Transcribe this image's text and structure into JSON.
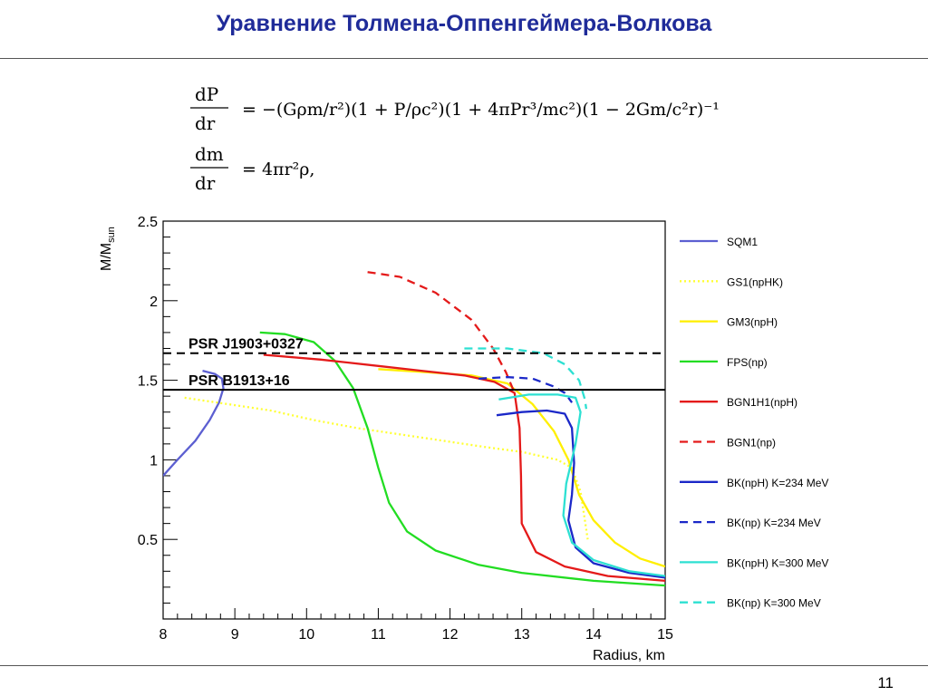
{
  "slide": {
    "title": "Уравнение Толмена-Оппенгеймера-Волкова",
    "page_number": "11"
  },
  "equations": [
    {
      "lhs_num": "dP",
      "lhs_den": "dr",
      "rhs": "= −(Gρm/r²)(1 + P/ρc²)(1 + 4πPr³/mc²)(1 − 2Gm/c²r)⁻¹"
    },
    {
      "lhs_num": "dm",
      "lhs_den": "dr",
      "rhs": "= 4πr²ρ,"
    }
  ],
  "colors": {
    "title": "#1f2b99",
    "SQM1": "#5c5fd1",
    "GS1": "#ffff33",
    "GM3": "#ffef00",
    "FPS": "#22dd22",
    "BGN1H1": "#e41a1a",
    "BGN1": "#e41a1a",
    "BK234": "#1b28c8",
    "BK300": "#2de0d2"
  },
  "chart_data": {
    "type": "line",
    "title": "",
    "xlabel": "Radius, km",
    "ylabel": "M/M_sun",
    "ylabel_main": "M/M",
    "ylabel_sub": "sun",
    "xlim": [
      8,
      15
    ],
    "ylim": [
      0,
      2.5
    ],
    "xticks": [
      "8",
      "9",
      "10",
      "11",
      "12",
      "13",
      "14",
      "15"
    ],
    "yticks": [
      "0.5",
      "1",
      "1.5",
      "2",
      "2.5"
    ],
    "grid": false,
    "legend_position": "right",
    "reference_lines": [
      {
        "label": "PSR J1903+0327",
        "y": 1.67,
        "style": "dashed",
        "color": "#000000"
      },
      {
        "label": "PSR B1913+16",
        "y": 1.44,
        "style": "solid",
        "color": "#000000"
      }
    ],
    "series": [
      {
        "name": "SQM1",
        "color": "#5c5fd1",
        "dash": "solid",
        "points": [
          [
            8.0,
            0.9
          ],
          [
            8.2,
            1.0
          ],
          [
            8.45,
            1.12
          ],
          [
            8.65,
            1.25
          ],
          [
            8.78,
            1.36
          ],
          [
            8.84,
            1.45
          ],
          [
            8.82,
            1.51
          ],
          [
            8.72,
            1.54
          ],
          [
            8.55,
            1.56
          ]
        ]
      },
      {
        "name": "GS1(npHK)",
        "color": "#ffff33",
        "dash": "dotted",
        "points": [
          [
            8.3,
            1.39
          ],
          [
            8.9,
            1.35
          ],
          [
            9.5,
            1.31
          ],
          [
            10.1,
            1.25
          ],
          [
            10.7,
            1.2
          ],
          [
            11.3,
            1.16
          ],
          [
            11.9,
            1.12
          ],
          [
            12.5,
            1.08
          ],
          [
            13.0,
            1.05
          ],
          [
            13.5,
            1.0
          ],
          [
            13.7,
            0.95
          ],
          [
            13.82,
            0.8
          ],
          [
            13.88,
            0.62
          ],
          [
            13.92,
            0.5
          ]
        ]
      },
      {
        "name": "GM3(npH)",
        "color": "#ffef00",
        "dash": "solid",
        "points": [
          [
            11.0,
            1.57
          ],
          [
            11.7,
            1.55
          ],
          [
            12.3,
            1.53
          ],
          [
            12.8,
            1.48
          ],
          [
            13.15,
            1.35
          ],
          [
            13.45,
            1.18
          ],
          [
            13.65,
            1.0
          ],
          [
            13.8,
            0.78
          ],
          [
            14.0,
            0.62
          ],
          [
            14.3,
            0.48
          ],
          [
            14.65,
            0.38
          ],
          [
            15.0,
            0.33
          ]
        ]
      },
      {
        "name": "FPS(np)",
        "color": "#22dd22",
        "dash": "solid",
        "points": [
          [
            9.35,
            1.8
          ],
          [
            9.7,
            1.79
          ],
          [
            10.1,
            1.74
          ],
          [
            10.4,
            1.62
          ],
          [
            10.65,
            1.45
          ],
          [
            10.85,
            1.2
          ],
          [
            11.0,
            0.95
          ],
          [
            11.15,
            0.73
          ],
          [
            11.4,
            0.55
          ],
          [
            11.8,
            0.43
          ],
          [
            12.4,
            0.34
          ],
          [
            13.0,
            0.29
          ],
          [
            14.0,
            0.24
          ],
          [
            15.0,
            0.21
          ]
        ]
      },
      {
        "name": "BGN1H1(npH)",
        "color": "#e41a1a",
        "dash": "solid",
        "points": [
          [
            9.4,
            1.66
          ],
          [
            10.2,
            1.63
          ],
          [
            11.0,
            1.59
          ],
          [
            11.6,
            1.56
          ],
          [
            12.2,
            1.53
          ],
          [
            12.62,
            1.49
          ],
          [
            12.9,
            1.42
          ],
          [
            12.97,
            1.2
          ],
          [
            12.99,
            0.9
          ],
          [
            13.0,
            0.6
          ],
          [
            13.2,
            0.42
          ],
          [
            13.6,
            0.33
          ],
          [
            14.2,
            0.27
          ],
          [
            15.0,
            0.24
          ]
        ]
      },
      {
        "name": "BGN1(np)",
        "color": "#e41a1a",
        "dash": "dashed",
        "points": [
          [
            10.85,
            2.18
          ],
          [
            11.3,
            2.15
          ],
          [
            11.8,
            2.05
          ],
          [
            12.3,
            1.88
          ],
          [
            12.6,
            1.7
          ],
          [
            12.78,
            1.55
          ],
          [
            12.9,
            1.42
          ]
        ]
      },
      {
        "name": "BK(npH) K=234 MeV",
        "color": "#1b28c8",
        "dash": "solid",
        "points": [
          [
            12.65,
            1.28
          ],
          [
            13.0,
            1.3
          ],
          [
            13.35,
            1.31
          ],
          [
            13.6,
            1.29
          ],
          [
            13.7,
            1.2
          ],
          [
            13.73,
            0.98
          ],
          [
            13.7,
            0.78
          ],
          [
            13.65,
            0.62
          ],
          [
            13.75,
            0.45
          ],
          [
            14.0,
            0.35
          ],
          [
            14.5,
            0.29
          ],
          [
            15.0,
            0.26
          ]
        ]
      },
      {
        "name": "BK(np) K=234 MeV",
        "color": "#1b28c8",
        "dash": "dashed",
        "points": [
          [
            12.4,
            1.51
          ],
          [
            12.8,
            1.52
          ],
          [
            13.15,
            1.51
          ],
          [
            13.45,
            1.46
          ],
          [
            13.6,
            1.42
          ],
          [
            13.7,
            1.36
          ]
        ]
      },
      {
        "name": "BK(npH) K=300 MeV",
        "color": "#2de0d2",
        "dash": "solid",
        "points": [
          [
            12.68,
            1.38
          ],
          [
            13.1,
            1.41
          ],
          [
            13.5,
            1.41
          ],
          [
            13.75,
            1.39
          ],
          [
            13.82,
            1.3
          ],
          [
            13.75,
            1.1
          ],
          [
            13.62,
            0.85
          ],
          [
            13.58,
            0.65
          ],
          [
            13.7,
            0.48
          ],
          [
            14.0,
            0.37
          ],
          [
            14.5,
            0.3
          ],
          [
            15.0,
            0.27
          ]
        ]
      },
      {
        "name": "BK(np) K=300 MeV",
        "color": "#2de0d2",
        "dash": "dashed",
        "points": [
          [
            12.2,
            1.7
          ],
          [
            12.8,
            1.7
          ],
          [
            13.3,
            1.67
          ],
          [
            13.6,
            1.6
          ],
          [
            13.8,
            1.5
          ],
          [
            13.88,
            1.38
          ],
          [
            13.9,
            1.32
          ]
        ]
      }
    ]
  }
}
